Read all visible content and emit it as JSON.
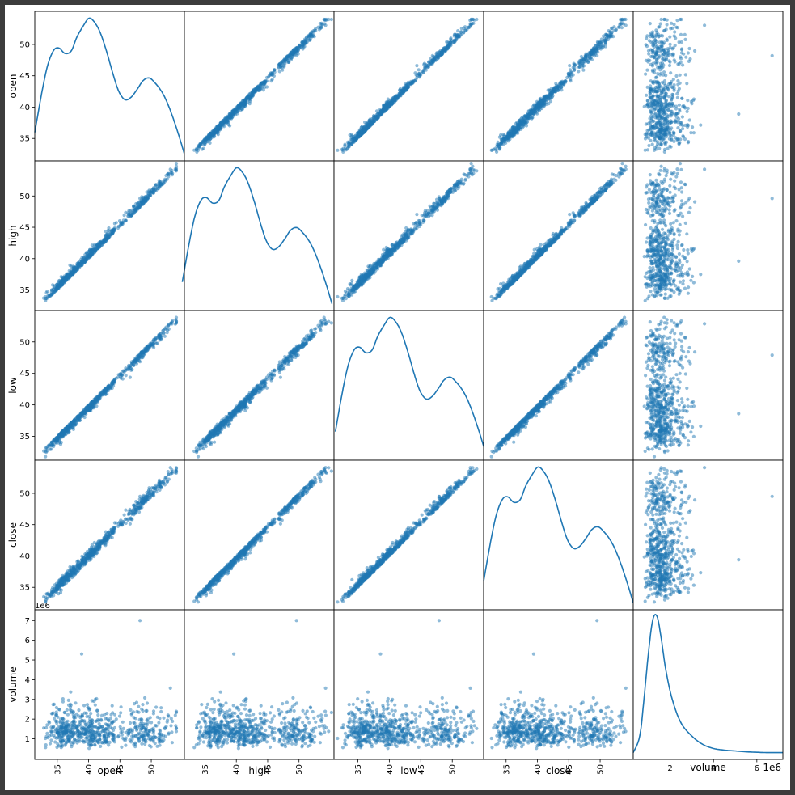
{
  "chart_data": {
    "type": "scatter",
    "layout": "scatter_matrix",
    "variables": [
      "open",
      "high",
      "low",
      "close",
      "volume"
    ],
    "diagonal": "kde",
    "point_color": "#1f77b4",
    "point_alpha": 0.5,
    "ranges": {
      "open": [
        32.5,
        54.2
      ],
      "high": [
        32.8,
        54.5
      ],
      "low": [
        32.3,
        53.9
      ],
      "close": [
        32.5,
        54.2
      ],
      "volume": [
        300000,
        7200000
      ]
    },
    "ticks": {
      "open": [
        35,
        40,
        45,
        50
      ],
      "high": [
        35,
        40,
        45,
        50
      ],
      "low": [
        35,
        40,
        45,
        50
      ],
      "close": [
        35,
        40,
        45,
        50
      ],
      "volume_y": [
        1,
        2,
        3,
        4,
        5,
        6,
        7
      ],
      "volume_x": [
        2,
        4,
        6
      ]
    },
    "tick_labels": {
      "price": [
        "35",
        "40",
        "45",
        "50"
      ],
      "volume_y": [
        "1",
        "2",
        "3",
        "4",
        "5",
        "6",
        "7"
      ],
      "volume_x": [
        "2",
        "4",
        "6"
      ]
    },
    "volume_scale_label": "1e6",
    "price_clusters": [
      {
        "center": 36.0,
        "spread": 1.3,
        "weight": 0.27
      },
      {
        "center": 40.5,
        "spread": 2.2,
        "weight": 0.45
      },
      {
        "center": 49.0,
        "spread": 2.3,
        "weight": 0.28
      }
    ],
    "volume_distribution": {
      "median": 1400000,
      "spread": 0.35
    },
    "kde_price": {
      "x": [
        32.5,
        33.4,
        34.3,
        35.2,
        36.0,
        36.9,
        37.8,
        38.6,
        39.5,
        40.4,
        41.3,
        42.1,
        43.0,
        43.9,
        44.7,
        45.6,
        46.5,
        47.4,
        48.2,
        49.1,
        50.0,
        50.9,
        51.7,
        52.6,
        53.5,
        54.2
      ],
      "y": [
        0.043,
        0.056,
        0.067,
        0.073,
        0.074,
        0.072,
        0.073,
        0.078,
        0.082,
        0.085,
        0.083,
        0.079,
        0.072,
        0.064,
        0.058,
        0.055,
        0.056,
        0.059,
        0.062,
        0.063,
        0.061,
        0.058,
        0.054,
        0.048,
        0.041,
        0.035
      ]
    },
    "kde_volume": {
      "x": [
        0.3,
        0.6,
        0.8,
        1.0,
        1.2,
        1.4,
        1.6,
        1.8,
        2.1,
        2.5,
        3.0,
        3.5,
        4.0,
        4.5,
        5.0,
        5.5,
        6.0,
        6.5,
        7.0,
        7.2
      ],
      "y": [
        0.02,
        0.12,
        0.35,
        0.62,
        0.82,
        0.84,
        0.7,
        0.52,
        0.34,
        0.2,
        0.12,
        0.07,
        0.045,
        0.035,
        0.03,
        0.025,
        0.022,
        0.02,
        0.02,
        0.02
      ]
    }
  }
}
